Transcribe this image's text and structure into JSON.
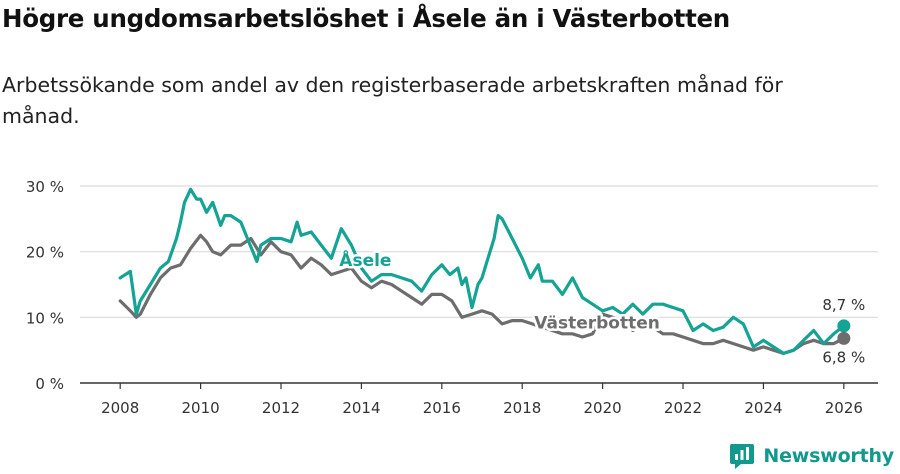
{
  "header": {
    "title": "Högre ungdomsarbetslöshet i Åsele än i Västerbotten",
    "subtitle": "Arbetssökande som andel av den registerbaserade arbetskraften månad för månad."
  },
  "brand": {
    "name": "Newsworthy",
    "color": "#11998e"
  },
  "chart_data": {
    "type": "line",
    "title": "Högre ungdomsarbetslöshet i Åsele än i Västerbotten",
    "subtitle": "Arbetssökande som andel av den registerbaserade arbetskraften månad för månad.",
    "xlabel": "",
    "ylabel": "",
    "xlim": [
      2007.0,
      2026.85
    ],
    "ylim": [
      0,
      30
    ],
    "x_ticks": [
      2008,
      2010,
      2012,
      2014,
      2016,
      2018,
      2020,
      2022,
      2024,
      2026
    ],
    "x_tick_labels": [
      "2008",
      "2010",
      "2012",
      "2014",
      "2016",
      "2018",
      "2020",
      "2022",
      "2024",
      "2026"
    ],
    "y_ticks": [
      0,
      10,
      20,
      30
    ],
    "y_tick_labels": [
      "0 %",
      "10 %",
      "20 %",
      "30 %"
    ],
    "grid": true,
    "series": [
      {
        "name": "Åsele",
        "label": "Åsele",
        "color": "#14a394",
        "end_label": "8,7 %",
        "x": [
          2008.0,
          2008.25,
          2008.4,
          2008.5,
          2008.75,
          2009.0,
          2009.2,
          2009.4,
          2009.5,
          2009.6,
          2009.75,
          2009.9,
          2010.0,
          2010.15,
          2010.3,
          2010.5,
          2010.6,
          2010.75,
          2011.0,
          2011.2,
          2011.4,
          2011.5,
          2011.75,
          2012.0,
          2012.25,
          2012.4,
          2012.5,
          2012.75,
          2013.0,
          2013.25,
          2013.5,
          2013.75,
          2014.0,
          2014.25,
          2014.5,
          2014.75,
          2015.0,
          2015.25,
          2015.5,
          2015.75,
          2016.0,
          2016.2,
          2016.4,
          2016.5,
          2016.6,
          2016.75,
          2016.9,
          2017.0,
          2017.15,
          2017.3,
          2017.4,
          2017.5,
          2017.75,
          2018.0,
          2018.2,
          2018.4,
          2018.5,
          2018.75,
          2019.0,
          2019.25,
          2019.5,
          2019.75,
          2020.0,
          2020.25,
          2020.5,
          2020.75,
          2021.0,
          2021.25,
          2021.5,
          2021.75,
          2022.0,
          2022.25,
          2022.5,
          2022.75,
          2023.0,
          2023.25,
          2023.5,
          2023.75,
          2024.0,
          2024.25,
          2024.5,
          2024.75,
          2025.0,
          2025.25,
          2025.5,
          2025.75,
          2026.0
        ],
        "values": [
          16.0,
          17.0,
          10.5,
          12.5,
          15.0,
          17.5,
          18.5,
          22.0,
          24.5,
          27.5,
          29.5,
          28.0,
          28.0,
          26.0,
          27.5,
          24.0,
          25.5,
          25.5,
          24.5,
          21.5,
          18.5,
          21.0,
          22.0,
          22.0,
          21.5,
          24.5,
          22.5,
          23.0,
          21.0,
          19.0,
          23.5,
          21.0,
          17.5,
          15.5,
          16.5,
          16.5,
          16.0,
          15.5,
          14.0,
          16.5,
          18.0,
          16.5,
          17.5,
          15.0,
          16.0,
          11.5,
          15.0,
          16.0,
          19.0,
          22.0,
          25.5,
          25.0,
          22.0,
          19.0,
          16.0,
          18.0,
          15.5,
          15.5,
          13.5,
          16.0,
          13.0,
          12.0,
          11.0,
          11.5,
          10.5,
          12.0,
          10.5,
          12.0,
          12.0,
          11.5,
          11.0,
          8.0,
          9.0,
          8.0,
          8.5,
          10.0,
          9.0,
          5.5,
          6.5,
          5.5,
          4.5,
          5.0,
          6.5,
          8.0,
          6.0,
          7.5,
          8.7
        ]
      },
      {
        "name": "Västerbotten",
        "label": "Västerbotten",
        "color": "#6d6d6d",
        "end_label": "6,8 %",
        "x": [
          2008.0,
          2008.25,
          2008.4,
          2008.5,
          2008.75,
          2009.0,
          2009.25,
          2009.5,
          2009.75,
          2010.0,
          2010.15,
          2010.3,
          2010.5,
          2010.75,
          2011.0,
          2011.25,
          2011.5,
          2011.75,
          2012.0,
          2012.25,
          2012.5,
          2012.75,
          2013.0,
          2013.25,
          2013.5,
          2013.75,
          2014.0,
          2014.25,
          2014.5,
          2014.75,
          2015.0,
          2015.25,
          2015.5,
          2015.75,
          2016.0,
          2016.25,
          2016.5,
          2016.75,
          2017.0,
          2017.25,
          2017.5,
          2017.75,
          2018.0,
          2018.25,
          2018.5,
          2018.75,
          2019.0,
          2019.25,
          2019.5,
          2019.75,
          2020.0,
          2020.25,
          2020.5,
          2020.75,
          2021.0,
          2021.25,
          2021.5,
          2021.75,
          2022.0,
          2022.25,
          2022.5,
          2022.75,
          2023.0,
          2023.25,
          2023.5,
          2023.75,
          2024.0,
          2024.25,
          2024.5,
          2024.75,
          2025.0,
          2025.25,
          2025.5,
          2025.75,
          2026.0
        ],
        "values": [
          12.5,
          11.0,
          10.0,
          10.5,
          13.5,
          16.0,
          17.5,
          18.0,
          20.5,
          22.5,
          21.5,
          20.0,
          19.5,
          21.0,
          21.0,
          22.0,
          19.5,
          21.5,
          20.0,
          19.5,
          17.5,
          19.0,
          18.0,
          16.5,
          17.0,
          17.5,
          15.5,
          14.5,
          15.5,
          15.0,
          14.0,
          13.0,
          12.0,
          13.5,
          13.5,
          12.5,
          10.0,
          10.5,
          11.0,
          10.5,
          9.0,
          9.5,
          9.5,
          9.0,
          8.5,
          8.0,
          7.5,
          7.5,
          7.0,
          7.5,
          10.5,
          10.0,
          9.5,
          8.0,
          9.0,
          8.5,
          7.5,
          7.5,
          7.0,
          6.5,
          6.0,
          6.0,
          6.5,
          6.0,
          5.5,
          5.0,
          5.5,
          5.0,
          4.5,
          5.0,
          6.0,
          6.5,
          6.0,
          6.0,
          6.8
        ]
      }
    ]
  }
}
